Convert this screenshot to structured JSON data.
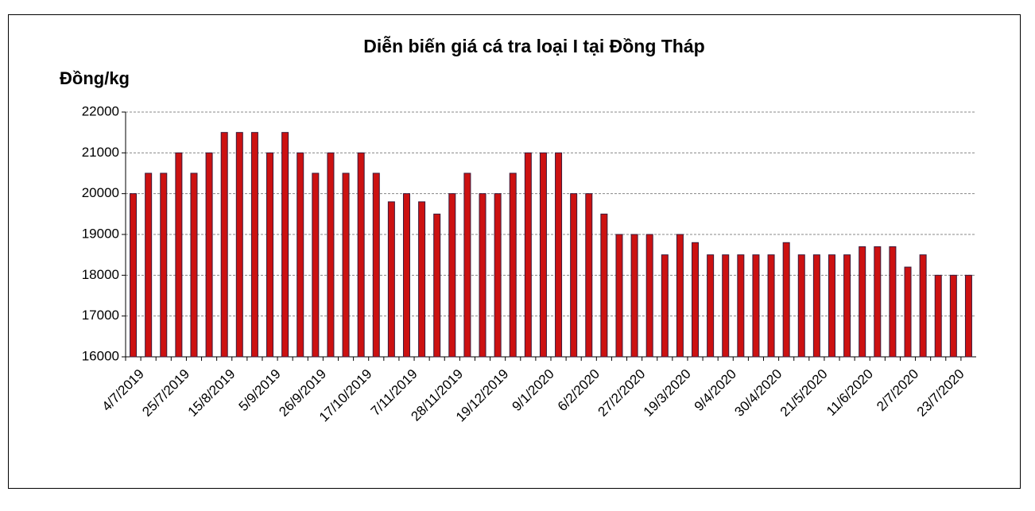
{
  "chart_data": {
    "type": "bar",
    "title": "Diễn biến giá cá tra loại I tại Đồng Tháp",
    "y_label": "Đồng/kg",
    "categories": [
      "4/7/2019",
      null,
      null,
      "25/7/2019",
      null,
      null,
      "15/8/2019",
      null,
      null,
      "5/9/2019",
      null,
      null,
      "26/9/2019",
      null,
      null,
      "17/10/2019",
      null,
      null,
      "7/11/2019",
      null,
      null,
      "28/11/2019",
      null,
      null,
      "19/12/2019",
      null,
      null,
      "9/1/2020",
      null,
      null,
      "6/2/2020",
      null,
      null,
      "27/2/2020",
      null,
      null,
      "19/3/2020",
      null,
      null,
      "9/4/2020",
      null,
      null,
      "30/4/2020",
      null,
      null,
      "21/5/2020",
      null,
      null,
      "11/6/2020",
      null,
      null,
      "2/7/2020",
      null,
      null,
      "23/7/2020",
      null
    ],
    "values": [
      20000,
      20500,
      20500,
      21000,
      20500,
      21000,
      21500,
      21500,
      21500,
      21000,
      21500,
      21000,
      20500,
      21000,
      20500,
      21000,
      20500,
      19800,
      20000,
      19800,
      19500,
      20000,
      20500,
      20000,
      20000,
      20500,
      21000,
      21000,
      21000,
      20000,
      20000,
      19500,
      19000,
      19000,
      19000,
      18500,
      19000,
      18800,
      18500,
      18500,
      18500,
      18500,
      18500,
      18800,
      18500,
      18500,
      18500,
      18500,
      18700,
      18700,
      18700,
      18200,
      18500,
      18000,
      18000,
      18000
    ],
    "color": "#cc1111",
    "ylim": [
      16000,
      22000
    ],
    "yticks": [
      16000,
      17000,
      18000,
      19000,
      20000,
      21000,
      22000
    ],
    "grid": true
  }
}
